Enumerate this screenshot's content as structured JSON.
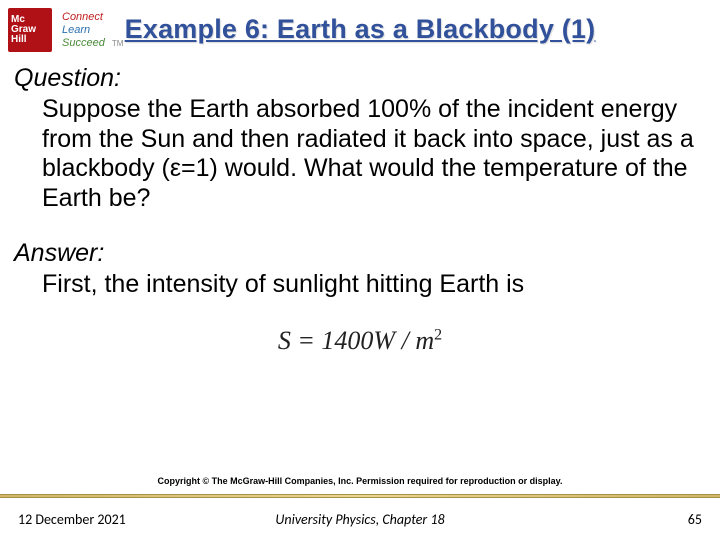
{
  "logo": {
    "line1": "Mc",
    "line2": "Graw",
    "line3": "Hill",
    "tag_connect": "Connect",
    "tag_learn": "Learn",
    "tag_succeed": "Succeed",
    "tm": "TM"
  },
  "title": "Example 6: Earth as a Blackbody (1)",
  "question": {
    "label": "Question:",
    "body": "Suppose the Earth absorbed 100% of the incident energy from the Sun and then radiated it back into space, just as a blackbody (ε=1) would. What would the temperature of the Earth be?"
  },
  "answer": {
    "label": "Answer:",
    "body": "First, the intensity of sunlight hitting Earth is",
    "formula_lhs": "S",
    "formula_eq": " = ",
    "formula_val": "1400",
    "formula_unit_w": "W",
    "formula_slash": " / ",
    "formula_unit_m": "m",
    "formula_exp": "2"
  },
  "copyright": "Copyright © The McGraw-Hill Companies, Inc. Permission required for reproduction or display.",
  "footer": {
    "date": "12 December 2021",
    "center": "University Physics, Chapter 18",
    "page": "65"
  },
  "colors": {
    "title": "#31519b",
    "logo_bg": "#b01117",
    "rule_mid": "#e6d07a",
    "rule_edge": "#c9a94a"
  }
}
